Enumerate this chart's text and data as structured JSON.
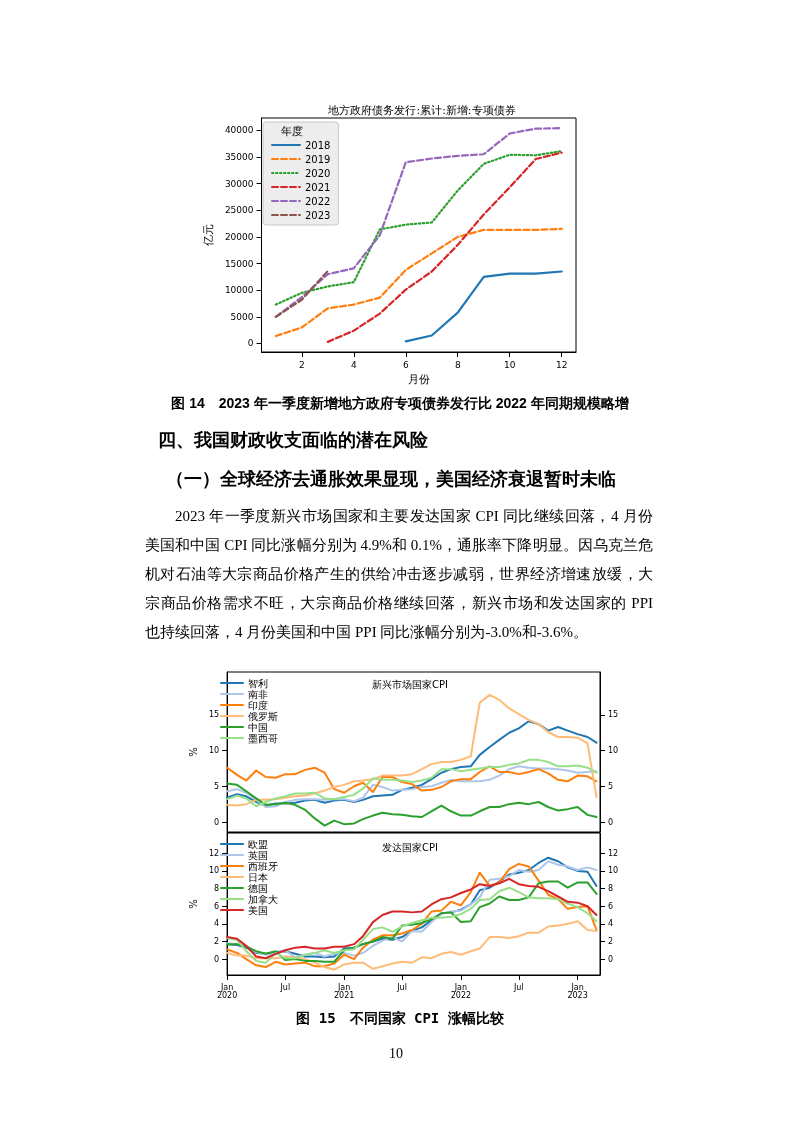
{
  "chart_data": [
    {
      "type": "line",
      "title": "地方政府债务发行:累计:新增:专项债券",
      "xlabel": "月份",
      "ylabel": "亿元",
      "legend_title": "年度",
      "x": [
        1,
        2,
        3,
        4,
        5,
        6,
        7,
        8,
        9,
        10,
        11,
        12
      ],
      "xlim": [
        0.45,
        12.55
      ],
      "xticks": [
        2,
        4,
        6,
        8,
        10,
        12
      ],
      "ylim": [
        -1600,
        42300
      ],
      "yticks": [
        0,
        5000,
        10000,
        15000,
        20000,
        25000,
        30000,
        35000,
        40000
      ],
      "grid": false,
      "legend": "top left",
      "marker": "none",
      "series": [
        {
          "name": "2018",
          "color": "#1f77b4",
          "line_style": "solid",
          "values": [
            null,
            null,
            null,
            null,
            null,
            400,
            1500,
            5800,
            12500,
            13100,
            13100,
            13500
          ]
        },
        {
          "name": "2019",
          "color": "#ff7f0e",
          "line_style": "dashed",
          "values": [
            1400,
            3000,
            6600,
            7300,
            8600,
            13800,
            16900,
            20000,
            21300,
            21300,
            21300,
            21500
          ]
        },
        {
          "name": "2020",
          "color": "#2ca02c",
          "line_style": "dotted",
          "values": [
            7300,
            9500,
            10700,
            11500,
            21400,
            22300,
            22700,
            28700,
            33700,
            35400,
            35300,
            36100
          ]
        },
        {
          "name": "2021",
          "color": "#d62728",
          "line_style": "dashed",
          "values": [
            null,
            null,
            300,
            2400,
            5600,
            10100,
            13500,
            18500,
            24200,
            29300,
            34600,
            35800
          ]
        },
        {
          "name": "2022",
          "color": "#9467bd",
          "line_style": "dashed",
          "values": [
            5000,
            8700,
            13000,
            14100,
            20300,
            34000,
            34700,
            35200,
            35500,
            39400,
            40300,
            40400
          ]
        },
        {
          "name": "2023",
          "color": "#8c564b",
          "line_style": "dashed",
          "values": [
            5000,
            8200,
            13600,
            null,
            null,
            null,
            null,
            null,
            null,
            null,
            null,
            null
          ]
        }
      ],
      "annotations": [
        "图 14　2023 年一季度新增地方政府专项债券发行比 2022 年同期规模略增",
        "四、我国财政收支面临的潜在风险",
        "（一）全球经济去通胀效果显现，美国经济衰退暂时未临",
        "2023 年一季度新兴市场国家和主要发达国家 CPI 同比继续回落，4 月份美国和中国 CPI 同比涨幅分别为 4.9%和 0.1%，通胀率下降明显。因乌克兰危机对石油等大宗商品价格产生的供给冲击逐步减弱，世界经济增速放缓，大宗商品价格需求不旺，大宗商品价格继续回落，新兴市场和发达国家的 PPI 也持续回落，4 月份美国和中国 PPI 同比涨幅分别为-3.0%和-3.6%。"
      ]
    },
    {
      "type": "line",
      "title": "新兴市场国家CPI",
      "ylabel": "%",
      "x": [
        "2020-01",
        "2020-02",
        "2020-03",
        "2020-04",
        "2020-05",
        "2020-06",
        "2020-07",
        "2020-08",
        "2020-09",
        "2020-10",
        "2020-11",
        "2020-12",
        "2021-01",
        "2021-02",
        "2021-03",
        "2021-04",
        "2021-05",
        "2021-06",
        "2021-07",
        "2021-08",
        "2021-09",
        "2021-10",
        "2021-11",
        "2021-12",
        "2022-01",
        "2022-02",
        "2022-03",
        "2022-04",
        "2022-05",
        "2022-06",
        "2022-07",
        "2022-08",
        "2022-09",
        "2022-10",
        "2022-11",
        "2022-12",
        "2023-01",
        "2023-02",
        "2023-03"
      ],
      "xlim": [
        "2020-01-01",
        "2023-03-12"
      ],
      "xticks": [
        {
          "value": "2020-01",
          "label": null
        },
        {
          "value": "2020-07",
          "label": null
        },
        {
          "value": "2021-01",
          "label": null
        },
        {
          "value": "2021-07",
          "label": null
        },
        {
          "value": "2022-01",
          "label": null
        },
        {
          "value": "2022-07",
          "label": null
        },
        {
          "value": "2023-01",
          "label": null
        }
      ],
      "ylim": [
        -1.4,
        21
      ],
      "yticks": [
        0,
        5,
        10,
        15
      ],
      "y2lim": [
        -1.4,
        21
      ],
      "y2ticks": [
        0,
        5,
        10,
        15
      ],
      "tick_labels": "y",
      "grid": false,
      "legend": "top left",
      "marker": "none",
      "line_style": "solid",
      "series": [
        {
          "name": "智利",
          "color": "#1f77b4",
          "values": [
            3.4,
            3.9,
            3.6,
            2.8,
            2.3,
            2.6,
            2.6,
            2.7,
            3.0,
            3.1,
            2.7,
            3.0,
            3.1,
            2.8,
            3.1,
            3.6,
            3.7,
            3.8,
            4.5,
            4.8,
            5.2,
            6.0,
            6.9,
            7.4,
            7.7,
            7.8,
            9.4,
            10.5,
            11.5,
            12.5,
            13.1,
            14.1,
            13.7,
            12.8,
            13.3,
            12.8,
            12.3,
            11.9,
            11.1
          ]
        },
        {
          "name": "南非",
          "color": "#aec7e8",
          "values": [
            4.3,
            4.6,
            4.1,
            3.1,
            2.1,
            2.2,
            2.8,
            3.1,
            3.2,
            3.2,
            3.1,
            3.2,
            3.2,
            2.9,
            3.4,
            5.2,
            4.9,
            4.4,
            4.5,
            4.6,
            4.9,
            5.0,
            5.5,
            5.9,
            5.7,
            5.7,
            5.7,
            5.9,
            6.5,
            7.4,
            7.8,
            7.6,
            7.5,
            7.5,
            7.4,
            7.2,
            6.9,
            7.0,
            7.1
          ]
        },
        {
          "name": "印度",
          "color": "#ff7f0e",
          "values": [
            7.6,
            6.6,
            5.8,
            7.2,
            6.3,
            6.2,
            6.7,
            6.7,
            7.3,
            7.6,
            6.9,
            4.6,
            4.1,
            5.0,
            5.5,
            4.2,
            6.3,
            6.3,
            5.6,
            5.3,
            4.4,
            4.5,
            4.9,
            5.7,
            6.0,
            6.0,
            7.0,
            7.8,
            7.0,
            7.0,
            6.7,
            7.0,
            7.4,
            6.8,
            5.9,
            5.7,
            6.5,
            6.4,
            5.7
          ]
        },
        {
          "name": "俄罗斯",
          "color": "#ffbb78",
          "values": [
            2.4,
            2.3,
            2.5,
            3.1,
            3.1,
            3.2,
            3.4,
            3.6,
            3.7,
            4.0,
            4.4,
            4.9,
            5.2,
            5.7,
            5.8,
            6.0,
            6.5,
            6.5,
            6.5,
            6.7,
            7.4,
            8.1,
            8.4,
            8.4,
            8.7,
            9.2,
            16.7,
            17.8,
            17.1,
            15.9,
            15.1,
            14.3,
            13.7,
            12.6,
            11.9,
            11.9,
            11.8,
            11.0,
            3.5
          ]
        },
        {
          "name": "中国",
          "color": "#2ca02c",
          "values": [
            5.4,
            5.2,
            4.3,
            3.3,
            2.4,
            2.5,
            2.7,
            2.4,
            1.7,
            0.5,
            -0.5,
            0.2,
            -0.3,
            -0.2,
            0.4,
            0.9,
            1.3,
            1.1,
            1.0,
            0.8,
            0.7,
            1.5,
            2.3,
            1.5,
            0.9,
            0.9,
            1.5,
            2.1,
            2.1,
            2.5,
            2.7,
            2.5,
            2.8,
            2.1,
            1.6,
            1.8,
            2.1,
            1.0,
            0.7
          ]
        },
        {
          "name": "墨西哥",
          "color": "#98df8a",
          "values": [
            3.2,
            3.7,
            3.3,
            2.2,
            2.8,
            3.3,
            3.6,
            4.0,
            4.0,
            4.1,
            3.3,
            3.2,
            3.5,
            3.8,
            4.7,
            6.1,
            5.9,
            5.9,
            5.8,
            5.6,
            5.8,
            6.2,
            7.4,
            7.4,
            7.1,
            7.3,
            7.5,
            7.7,
            7.7,
            8.0,
            8.2,
            8.7,
            8.7,
            8.4,
            7.8,
            7.8,
            7.9,
            7.6,
            6.9
          ]
        }
      ]
    },
    {
      "type": "line",
      "title": "发达国家CPI",
      "ylabel": "%",
      "x": [
        "2020-01",
        "2020-02",
        "2020-03",
        "2020-04",
        "2020-05",
        "2020-06",
        "2020-07",
        "2020-08",
        "2020-09",
        "2020-10",
        "2020-11",
        "2020-12",
        "2021-01",
        "2021-02",
        "2021-03",
        "2021-04",
        "2021-05",
        "2021-06",
        "2021-07",
        "2021-08",
        "2021-09",
        "2021-10",
        "2021-11",
        "2021-12",
        "2022-01",
        "2022-02",
        "2022-03",
        "2022-04",
        "2022-05",
        "2022-06",
        "2022-07",
        "2022-08",
        "2022-09",
        "2022-10",
        "2022-11",
        "2022-12",
        "2023-01",
        "2023-02",
        "2023-03"
      ],
      "xlim": [
        "2020-01-01",
        "2023-03-12"
      ],
      "xticks": [
        {
          "value": "2020-01",
          "label": "Jan\n2020"
        },
        {
          "value": "2020-07",
          "label": "Jul"
        },
        {
          "value": "2021-01",
          "label": "Jan\n2021"
        },
        {
          "value": "2021-07",
          "label": "Jul"
        },
        {
          "value": "2022-01",
          "label": "Jan\n2022"
        },
        {
          "value": "2022-07",
          "label": "Jul"
        },
        {
          "value": "2023-01",
          "label": "Jan\n2023"
        }
      ],
      "ylim": [
        -1.8,
        14.3
      ],
      "yticks": [
        0,
        2,
        4,
        6,
        8,
        10,
        12
      ],
      "y2lim": [
        -1.8,
        14.3
      ],
      "y2ticks": [
        0,
        2,
        4,
        6,
        8,
        10,
        12
      ],
      "grid": false,
      "legend": "top left",
      "marker": "none",
      "line_style": "solid",
      "series": [
        {
          "name": "欧盟",
          "color": "#1f77b4",
          "values": [
            1.7,
            1.6,
            1.3,
            0.7,
            0.6,
            0.8,
            0.9,
            0.6,
            0.3,
            0.3,
            0.2,
            0.3,
            1.2,
            1.3,
            1.7,
            2.0,
            2.3,
            2.2,
            2.5,
            3.2,
            3.6,
            4.4,
            5.2,
            5.3,
            5.6,
            6.2,
            7.8,
            8.1,
            8.8,
            9.6,
            9.8,
            10.1,
            10.9,
            11.5,
            11.1,
            10.4,
            10.0,
            9.9,
            8.3
          ]
        },
        {
          "name": "英国",
          "color": "#aec7e8",
          "values": [
            1.8,
            1.7,
            1.5,
            0.8,
            0.5,
            0.6,
            1.0,
            0.2,
            0.5,
            0.7,
            0.3,
            0.6,
            0.7,
            0.4,
            0.7,
            1.5,
            2.1,
            2.5,
            2.0,
            3.2,
            3.1,
            4.2,
            5.1,
            5.4,
            5.5,
            6.2,
            7.0,
            9.0,
            9.1,
            9.4,
            10.1,
            9.9,
            10.1,
            11.1,
            10.7,
            10.5,
            10.1,
            10.4,
            10.1
          ]
        },
        {
          "name": "西班牙",
          "color": "#ff7f0e",
          "values": [
            1.1,
            0.7,
            0.0,
            -0.7,
            -0.9,
            -0.3,
            -0.6,
            -0.5,
            -0.4,
            -0.8,
            -0.8,
            -0.5,
            0.5,
            0.0,
            1.3,
            2.2,
            2.7,
            2.7,
            2.9,
            3.3,
            4.0,
            5.4,
            5.5,
            6.5,
            6.1,
            7.6,
            9.8,
            8.3,
            8.7,
            10.2,
            10.8,
            10.5,
            8.9,
            7.3,
            6.8,
            5.7,
            5.9,
            6.0,
            3.3
          ]
        },
        {
          "name": "日本",
          "color": "#ffbb78",
          "values": [
            0.7,
            0.4,
            0.4,
            0.1,
            0.1,
            0.1,
            0.3,
            0.2,
            0.0,
            -0.4,
            -0.9,
            -1.2,
            -0.6,
            -0.4,
            -0.4,
            -1.1,
            -0.8,
            -0.5,
            -0.3,
            -0.4,
            0.2,
            0.1,
            0.6,
            0.8,
            0.5,
            0.9,
            1.2,
            2.5,
            2.5,
            2.4,
            2.6,
            3.0,
            3.0,
            3.7,
            3.8,
            4.0,
            4.3,
            3.3,
            3.2
          ]
        },
        {
          "name": "德国",
          "color": "#2ca02c",
          "values": [
            1.7,
            1.7,
            1.4,
            0.9,
            0.6,
            0.9,
            -0.1,
            0.0,
            -0.2,
            -0.2,
            -0.3,
            -0.3,
            1.0,
            1.3,
            1.7,
            2.0,
            2.5,
            2.3,
            3.8,
            3.9,
            4.1,
            4.5,
            5.2,
            5.3,
            4.2,
            4.3,
            5.9,
            6.3,
            7.1,
            6.7,
            6.7,
            7.0,
            8.6,
            8.8,
            8.8,
            8.1,
            8.7,
            8.7,
            7.4
          ]
        },
        {
          "name": "加拿大",
          "color": "#98df8a",
          "values": [
            2.4,
            2.2,
            0.9,
            -0.2,
            -0.4,
            0.7,
            0.1,
            0.1,
            0.5,
            0.7,
            1.0,
            0.7,
            1.0,
            1.1,
            2.2,
            3.4,
            3.6,
            3.1,
            3.7,
            4.1,
            4.4,
            4.7,
            4.7,
            4.8,
            5.1,
            5.7,
            6.7,
            6.8,
            7.7,
            8.1,
            7.6,
            7.0,
            6.9,
            6.9,
            6.8,
            6.3,
            5.9,
            5.2,
            4.3
          ]
        },
        {
          "name": "美国",
          "color": "#d62728",
          "values": [
            2.5,
            2.3,
            1.5,
            0.3,
            0.1,
            0.6,
            1.0,
            1.3,
            1.4,
            1.2,
            1.2,
            1.4,
            1.4,
            1.7,
            2.6,
            4.2,
            5.0,
            5.4,
            5.4,
            5.3,
            5.4,
            6.2,
            6.8,
            7.0,
            7.5,
            7.9,
            8.5,
            8.3,
            8.6,
            9.1,
            8.5,
            8.3,
            8.2,
            7.7,
            7.1,
            6.5,
            6.4,
            6.0,
            5.0
          ]
        }
      ],
      "annotations": [
        "图 15　不同国家 CPI 涨幅比较",
        "10"
      ]
    }
  ]
}
